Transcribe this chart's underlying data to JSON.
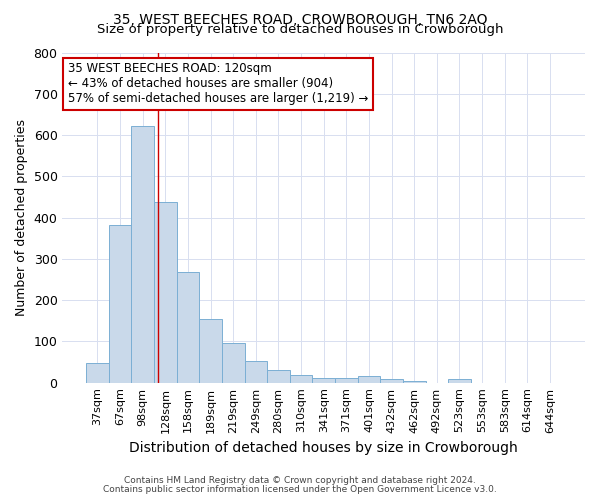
{
  "title": "35, WEST BEECHES ROAD, CROWBOROUGH, TN6 2AQ",
  "subtitle": "Size of property relative to detached houses in Crowborough",
  "xlabel": "Distribution of detached houses by size in Crowborough",
  "ylabel": "Number of detached properties",
  "categories": [
    "37sqm",
    "67sqm",
    "98sqm",
    "128sqm",
    "158sqm",
    "189sqm",
    "219sqm",
    "249sqm",
    "280sqm",
    "310sqm",
    "341sqm",
    "371sqm",
    "401sqm",
    "432sqm",
    "462sqm",
    "492sqm",
    "523sqm",
    "553sqm",
    "583sqm",
    "614sqm",
    "644sqm"
  ],
  "values": [
    48,
    383,
    623,
    437,
    268,
    155,
    97,
    52,
    30,
    18,
    12,
    12,
    15,
    8,
    3,
    0,
    8,
    0,
    0,
    0,
    0
  ],
  "bar_color": "#c9d9ea",
  "bar_edge_color": "#7bafd4",
  "red_line_x": 2.67,
  "annotation_text": "35 WEST BEECHES ROAD: 120sqm\n← 43% of detached houses are smaller (904)\n57% of semi-detached houses are larger (1,219) →",
  "annotation_box_color": "#ffffff",
  "annotation_box_edge": "#cc0000",
  "footnote1": "Contains HM Land Registry data © Crown copyright and database right 2024.",
  "footnote2": "Contains public sector information licensed under the Open Government Licence v3.0.",
  "title_fontsize": 10,
  "subtitle_fontsize": 9.5,
  "xlabel_fontsize": 10,
  "ylabel_fontsize": 9,
  "tick_fontsize": 8,
  "annot_fontsize": 8.5,
  "background_color": "#ffffff",
  "grid_color": "#d8dff0",
  "ylim": [
    0,
    800
  ]
}
